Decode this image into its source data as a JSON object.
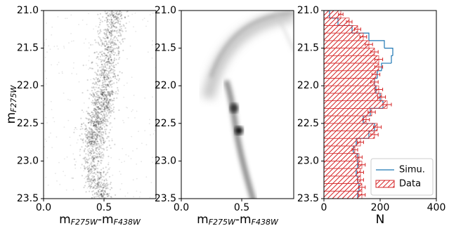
{
  "chart_data": [
    {
      "type": "density",
      "xlabel": "mF275W-mF438W",
      "ylabel": "mF275W",
      "xlim": [
        0,
        0.93
      ],
      "xticks": [
        {
          "value": 0,
          "label": "0.0"
        },
        0.5
      ],
      "ylim": [
        21,
        23.5
      ],
      "invert_y": true,
      "yticks": [
        {
          "value": 21,
          "label": "21.0"
        },
        21.5,
        {
          "value": 22,
          "label": "22.0"
        },
        22.5,
        {
          "value": 23,
          "label": "23.0"
        },
        23.5
      ]
    },
    {
      "type": "density",
      "xlabel": "mF275W-mF438W",
      "style": "smooth",
      "xlim": [
        0,
        0.93
      ],
      "xticks": [
        {
          "value": 0,
          "label": "0.0"
        },
        0.5
      ],
      "ylim": [
        21,
        23.5
      ],
      "invert_y": true,
      "yticks": [
        {
          "value": 21,
          "label": "21.0"
        },
        21.5,
        {
          "value": 22,
          "label": "22.0"
        },
        22.5,
        {
          "value": 23,
          "label": "23.0"
        },
        23.5
      ]
    },
    {
      "type": "histogram",
      "orientation": "horizontal",
      "xlabel": "N",
      "xlim": [
        0,
        400
      ],
      "xticks": [
        0,
        200,
        400
      ],
      "ylim": [
        21,
        23.5
      ],
      "invert_y": true,
      "yticks": [
        {
          "value": 21,
          "label": "21.0"
        },
        21.5,
        {
          "value": 22,
          "label": "22.0"
        },
        22.5,
        {
          "value": 23,
          "label": "23.0"
        },
        23.5
      ],
      "bins": [
        21,
        21.1,
        21.2,
        21.3,
        21.4,
        21.5,
        21.6,
        21.7,
        21.8,
        21.9,
        22,
        22.1,
        22.2,
        22.3,
        22.4,
        22.5,
        22.6,
        22.7,
        22.8,
        22.9,
        23,
        23.1,
        23.2,
        23.3,
        23.4,
        23.5
      ],
      "series": [
        {
          "name": "Simu.",
          "color": "#1f77b4",
          "style": "step",
          "values": [
            20,
            50,
            100,
            160,
            215,
            245,
            240,
            205,
            190,
            180,
            185,
            200,
            210,
            165,
            140,
            180,
            160,
            115,
            105,
            120,
            120,
            115,
            120,
            125,
            120
          ]
        },
        {
          "name": "Data",
          "color": "#d62728",
          "style": "hatched",
          "values": [
            60,
            90,
            120,
            140,
            160,
            180,
            195,
            195,
            185,
            180,
            195,
            205,
            225,
            170,
            150,
            190,
            180,
            130,
            110,
            125,
            135,
            130,
            130,
            135,
            135
          ],
          "errors": [
            8,
            10,
            11,
            12,
            13,
            13,
            14,
            14,
            14,
            13,
            14,
            14,
            15,
            13,
            12,
            14,
            13,
            11,
            10,
            11,
            12,
            11,
            11,
            12,
            12
          ]
        }
      ],
      "legend": "lower right"
    }
  ]
}
